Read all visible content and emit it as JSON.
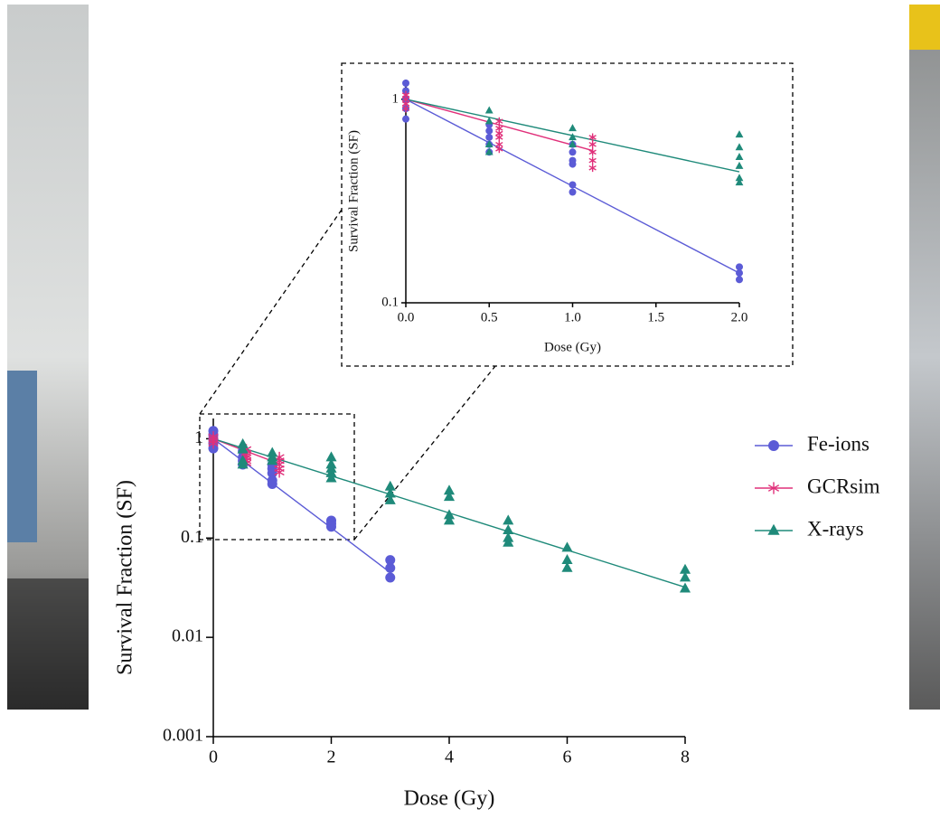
{
  "chart_data": [
    {
      "type": "scatter",
      "xlabel": "Dose (Gy)",
      "ylabel": "Survival Fraction (SF)",
      "log_y": true,
      "legend": "right",
      "xlim": [
        0,
        8
      ],
      "xticks": [
        0,
        2,
        4,
        6,
        8
      ],
      "ylim": [
        0.001,
        1.6
      ],
      "yticks": [
        0.001,
        0.01,
        0.1,
        1
      ],
      "series": [
        {
          "name": "Fe-ions",
          "color": "#5b5bd6",
          "marker": "circle",
          "x": [
            0,
            0,
            0,
            0,
            0,
            0.5,
            0.5,
            0.5,
            0.5,
            1,
            1,
            1,
            1,
            1,
            2,
            2,
            2,
            3,
            3,
            3
          ],
          "values": [
            1.2,
            1.1,
            1.0,
            0.9,
            0.8,
            0.75,
            0.65,
            0.6,
            0.55,
            0.55,
            0.5,
            0.45,
            0.38,
            0.35,
            0.15,
            0.14,
            0.13,
            0.06,
            0.05,
            0.04
          ],
          "fit": {
            "x": [
              0,
              3
            ],
            "values": [
              1,
              0.045
            ]
          }
        },
        {
          "name": "GCRsim",
          "color": "#e0307a",
          "marker": "asterisk",
          "x": [
            0,
            0,
            0,
            0,
            0.56,
            0.56,
            0.56,
            0.56,
            0.56,
            0.56,
            1.12,
            1.12,
            1.12,
            1.12,
            1.12
          ],
          "values": [
            1.05,
            1.0,
            0.95,
            0.9,
            0.78,
            0.72,
            0.68,
            0.65,
            0.6,
            0.57,
            0.65,
            0.6,
            0.55,
            0.5,
            0.46
          ],
          "fit": {
            "x": [
              0,
              1.12
            ],
            "values": [
              1,
              0.56
            ]
          }
        },
        {
          "name": "X-rays",
          "color": "#1f8a7a",
          "marker": "triangle",
          "x": [
            0.5,
            0.5,
            0.5,
            0.5,
            1,
            1,
            1,
            2,
            2,
            2,
            2,
            2,
            3,
            3,
            3,
            4,
            4,
            4,
            4,
            5,
            5,
            5,
            5,
            6,
            6,
            6,
            8,
            8,
            8
          ],
          "values": [
            0.88,
            0.78,
            0.6,
            0.55,
            0.72,
            0.65,
            0.6,
            0.65,
            0.55,
            0.5,
            0.45,
            0.4,
            0.33,
            0.28,
            0.24,
            0.3,
            0.26,
            0.17,
            0.15,
            0.15,
            0.12,
            0.1,
            0.09,
            0.08,
            0.06,
            0.05,
            0.048,
            0.04,
            0.031
          ],
          "fit": {
            "x": [
              0,
              8
            ],
            "values": [
              1,
              0.032
            ]
          }
        }
      ]
    },
    {
      "type": "scatter",
      "xlabel": "Dose (Gy)",
      "ylabel": "Survival Fraction (SF)",
      "log_y": true,
      "xlim": [
        0,
        2
      ],
      "xticks": [
        {
          "value": 0,
          "label": "0.0"
        },
        {
          "value": 0.5,
          "label": "0.5"
        },
        {
          "value": 1,
          "label": "1.0"
        },
        {
          "value": 1.5,
          "label": "1.5"
        },
        {
          "value": 2,
          "label": "2.0"
        }
      ],
      "ylim": [
        0.1,
        1.25
      ],
      "yticks": [
        0.1,
        1
      ],
      "series": [
        {
          "name": "Fe-ions",
          "color": "#5b5bd6",
          "marker": "circle",
          "x": [
            0,
            0,
            0,
            0,
            0,
            0.5,
            0.5,
            0.5,
            0.5,
            0.5,
            1,
            1,
            1,
            1,
            1,
            1,
            2,
            2,
            2
          ],
          "values": [
            1.2,
            1.1,
            1.0,
            0.9,
            0.8,
            0.75,
            0.7,
            0.65,
            0.6,
            0.55,
            0.6,
            0.55,
            0.5,
            0.48,
            0.38,
            0.35,
            0.15,
            0.14,
            0.13
          ],
          "fit": {
            "x": [
              0,
              2
            ],
            "values": [
              1,
              0.14
            ]
          }
        },
        {
          "name": "GCRsim",
          "color": "#e0307a",
          "marker": "asterisk",
          "x": [
            0,
            0,
            0,
            0,
            0.56,
            0.56,
            0.56,
            0.56,
            0.56,
            0.56,
            1.12,
            1.12,
            1.12,
            1.12,
            1.12
          ],
          "values": [
            1.05,
            1.0,
            0.95,
            0.9,
            0.78,
            0.72,
            0.68,
            0.65,
            0.6,
            0.57,
            0.65,
            0.6,
            0.55,
            0.5,
            0.46
          ],
          "fit": {
            "x": [
              0,
              1.12
            ],
            "values": [
              1,
              0.56
            ]
          }
        },
        {
          "name": "X-rays",
          "color": "#1f8a7a",
          "marker": "triangle",
          "x": [
            0.5,
            0.5,
            0.5,
            0.5,
            1,
            1,
            1,
            2,
            2,
            2,
            2,
            2,
            2
          ],
          "values": [
            0.88,
            0.78,
            0.6,
            0.55,
            0.72,
            0.65,
            0.6,
            0.67,
            0.58,
            0.52,
            0.47,
            0.41,
            0.39
          ],
          "fit": {
            "x": [
              0,
              2
            ],
            "values": [
              1,
              0.44
            ]
          }
        }
      ]
    }
  ]
}
